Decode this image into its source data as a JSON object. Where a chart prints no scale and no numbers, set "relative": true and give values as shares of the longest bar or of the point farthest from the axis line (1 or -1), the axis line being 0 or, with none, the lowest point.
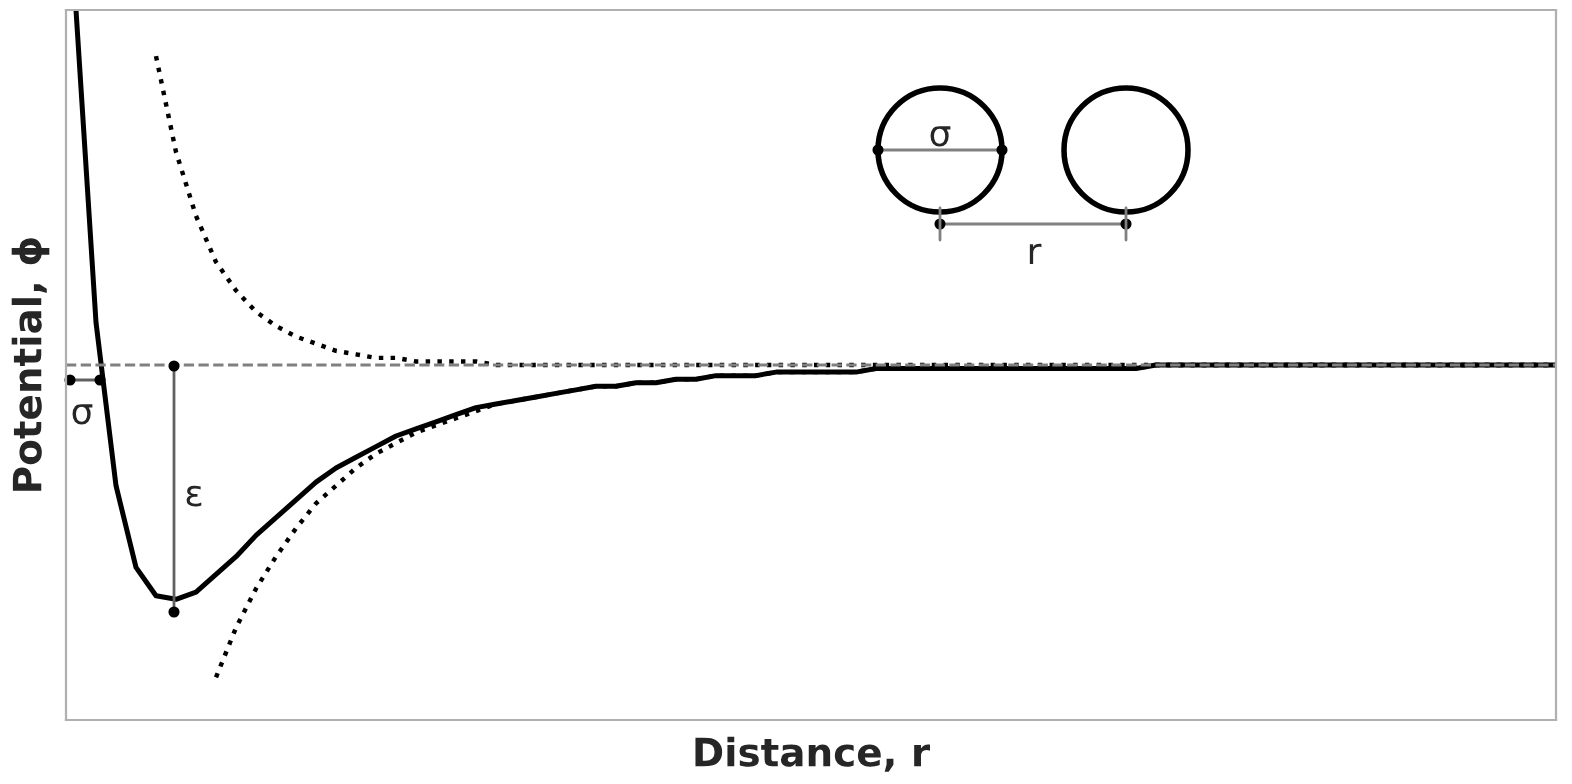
{
  "chart_data": {
    "type": "line",
    "relative": true,
    "xlabel": "Distance, r",
    "ylabel": "Potential, ϕ",
    "categories": [
      null,
      null,
      null,
      null,
      null,
      null,
      null,
      null,
      null,
      null,
      null,
      null,
      null,
      null,
      null,
      null,
      null,
      null,
      null,
      null,
      null,
      null,
      null,
      null,
      null,
      null,
      null,
      null,
      null,
      null,
      null,
      null,
      null,
      null,
      null,
      null,
      null,
      null,
      null,
      null,
      null,
      null,
      null,
      null,
      null,
      null,
      null,
      null,
      null,
      null,
      null,
      null,
      null,
      null,
      null,
      null,
      null,
      null,
      null,
      null,
      null,
      null,
      null,
      null,
      null,
      null,
      null,
      null,
      null,
      null,
      null,
      null,
      null,
      null,
      null
    ],
    "series": [
      {
        "color": "#000000",
        "line_style": "solid",
        "values": [
          1.0,
          0.12,
          -0.34,
          -0.57,
          -0.65,
          -0.66,
          -0.64,
          -0.59,
          -0.54,
          -0.48,
          -0.43,
          -0.38,
          -0.33,
          -0.29,
          -0.26,
          -0.23,
          -0.2,
          -0.18,
          -0.16,
          -0.14,
          -0.12,
          -0.11,
          -0.1,
          -0.09,
          -0.08,
          -0.07,
          -0.06,
          -0.06,
          -0.05,
          -0.05,
          -0.04,
          -0.04,
          -0.03,
          -0.03,
          -0.03,
          -0.02,
          -0.02,
          -0.02,
          -0.02,
          -0.02,
          -0.01,
          -0.01,
          -0.01,
          -0.01,
          -0.01,
          -0.01,
          -0.01,
          -0.01,
          -0.01,
          -0.01,
          -0.01,
          -0.01,
          -0.01,
          -0.01,
          0.0,
          0.0,
          0.0,
          0.0,
          0.0,
          0.0,
          0.0,
          0.0,
          0.0,
          0.0,
          0.0,
          0.0,
          0.0,
          0.0,
          0.0,
          0.0,
          0.0,
          0.0,
          0.0,
          0.0,
          0.0
        ]
      },
      {
        "color": "#000000",
        "line_style": "dotted",
        "values": [
          null,
          null,
          null,
          null,
          0.87,
          0.6,
          0.42,
          0.29,
          0.21,
          0.15,
          0.11,
          0.08,
          0.06,
          0.04,
          0.03,
          0.02,
          0.02,
          0.01,
          0.01,
          0.01,
          0.01,
          0.0,
          0.0,
          0.0,
          0.0,
          0.0,
          0.0,
          0.0,
          0.0,
          0.0,
          0.0,
          0.0,
          0.0,
          0.0,
          0.0,
          0.0,
          0.0,
          0.0,
          0.0,
          0.0,
          0.0,
          0.0,
          0.0,
          0.0,
          0.0,
          0.0,
          0.0,
          0.0,
          0.0,
          0.0,
          0.0,
          0.0,
          0.0,
          0.0,
          0.0,
          0.0,
          0.0,
          0.0,
          0.0,
          0.0,
          0.0,
          0.0,
          0.0,
          0.0,
          0.0,
          0.0,
          0.0,
          0.0,
          0.0,
          0.0,
          0.0,
          0.0,
          0.0,
          0.0,
          0.0
        ]
      },
      {
        "color": "#000000",
        "line_style": "dotted",
        "values": [
          null,
          null,
          null,
          null,
          null,
          null,
          null,
          -0.88,
          -0.74,
          -0.63,
          -0.54,
          -0.46,
          -0.39,
          -0.34,
          -0.29,
          -0.25,
          -0.22,
          -0.19,
          -0.17,
          -0.15,
          -0.13,
          -0.11,
          -0.1,
          -0.09,
          -0.08,
          -0.07,
          -0.06,
          -0.06,
          -0.05,
          -0.05,
          -0.04,
          -0.04,
          -0.03,
          -0.03,
          -0.03,
          -0.02,
          -0.02,
          -0.02,
          -0.02,
          -0.02,
          -0.01,
          -0.01,
          -0.01,
          -0.01,
          -0.01,
          -0.01,
          -0.01,
          -0.01,
          -0.01,
          -0.01,
          -0.01,
          -0.01,
          -0.01,
          -0.01,
          0.0,
          0.0,
          0.0,
          0.0,
          0.0,
          0.0,
          0.0,
          0.0,
          0.0,
          0.0,
          0.0,
          0.0,
          0.0,
          0.0,
          0.0,
          0.0,
          0.0,
          0.0,
          0.0,
          0.0,
          0.0
        ]
      }
    ],
    "ref_lines": [
      {
        "axis": "y",
        "value": 0,
        "color": "#808080",
        "line_style": "dashed"
      }
    ],
    "annotations": [
      "σ",
      "ε",
      "σ",
      "r"
    ],
    "tick_labels": false
  }
}
